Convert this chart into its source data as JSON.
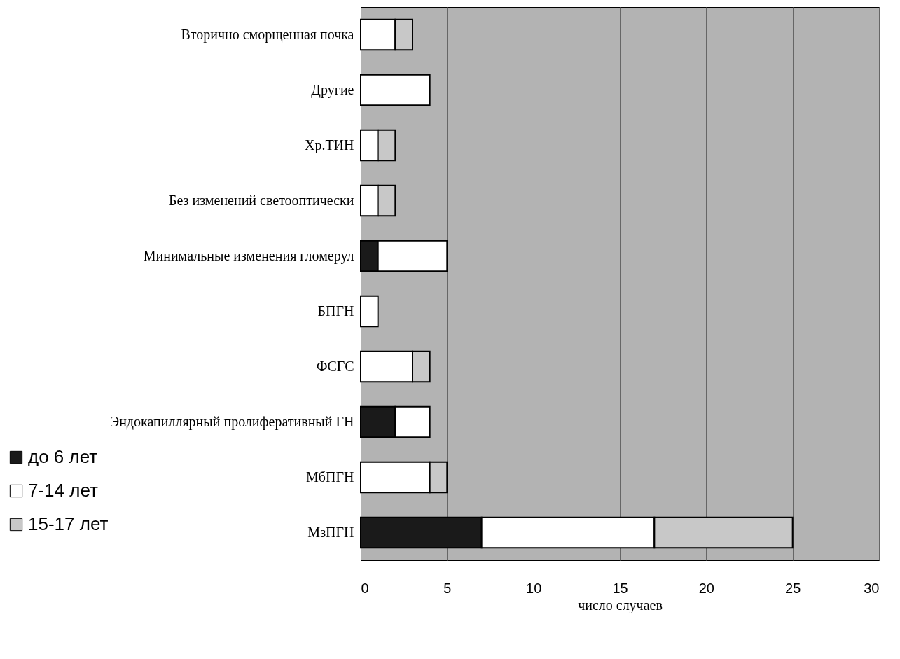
{
  "chart_data": {
    "type": "bar",
    "orientation": "horizontal",
    "stacked": true,
    "xlabel": "число случаев",
    "categories": [
      "Вторично сморщенная почка",
      "Другие",
      "Хр.ТИН",
      "Без изменений светооптически",
      "Минимальные изменения гломерул",
      "БПГН",
      "ФСГС",
      "Эндокапиллярный пролиферативный ГН",
      "МбПГН",
      "МзПГН"
    ],
    "series": [
      {
        "name": "до 6 лет",
        "color": "#1a1a1a",
        "values": [
          0,
          0,
          0,
          0,
          1,
          0,
          0,
          2,
          0,
          7
        ]
      },
      {
        "name": "7-14 лет",
        "color": "#ffffff",
        "values": [
          2,
          4,
          1,
          1,
          4,
          1,
          3,
          2,
          4,
          10
        ]
      },
      {
        "name": "15-17 лет",
        "color": "#c8c8c8",
        "values": [
          1,
          0,
          1,
          1,
          0,
          0,
          1,
          0,
          1,
          8
        ]
      }
    ],
    "xlim": [
      0,
      30
    ],
    "xticks": [
      0,
      5,
      10,
      15,
      20,
      25,
      30
    ],
    "grid": "x",
    "legend": "bottom left"
  }
}
